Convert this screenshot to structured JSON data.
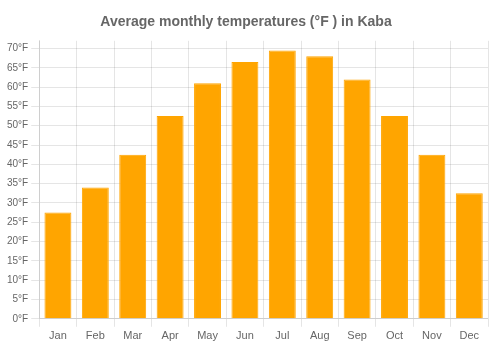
{
  "chart_data": {
    "type": "bar",
    "title": "Average monthly temperatures (°F ) in Kaba",
    "categories": [
      "Jan",
      "Feb",
      "Mar",
      "Apr",
      "May",
      "Jun",
      "Jul",
      "Aug",
      "Sep",
      "Oct",
      "Nov",
      "Dec"
    ],
    "values": [
      27.5,
      34.0,
      42.5,
      52.5,
      61.0,
      66.5,
      69.5,
      68.0,
      62.0,
      52.5,
      42.5,
      32.5
    ],
    "color": "#FFA500",
    "ylim": [
      0,
      72
    ],
    "yticks": [
      {
        "value": 0,
        "label": "0°F"
      },
      {
        "value": 5,
        "label": "5°F"
      },
      {
        "value": 10,
        "label": "10°F"
      },
      {
        "value": 15,
        "label": "15°F"
      },
      {
        "value": 20,
        "label": "20°F"
      },
      {
        "value": 25,
        "label": "25°F"
      },
      {
        "value": 30,
        "label": "30°F"
      },
      {
        "value": 35,
        "label": "35°F"
      },
      {
        "value": 40,
        "label": "40°F"
      },
      {
        "value": 45,
        "label": "45°F"
      },
      {
        "value": 50,
        "label": "50°F"
      },
      {
        "value": 55,
        "label": "55°F"
      },
      {
        "value": 60,
        "label": "60°F"
      },
      {
        "value": 65,
        "label": "65°F"
      },
      {
        "value": 70,
        "label": "70°F"
      }
    ],
    "grid": true
  }
}
